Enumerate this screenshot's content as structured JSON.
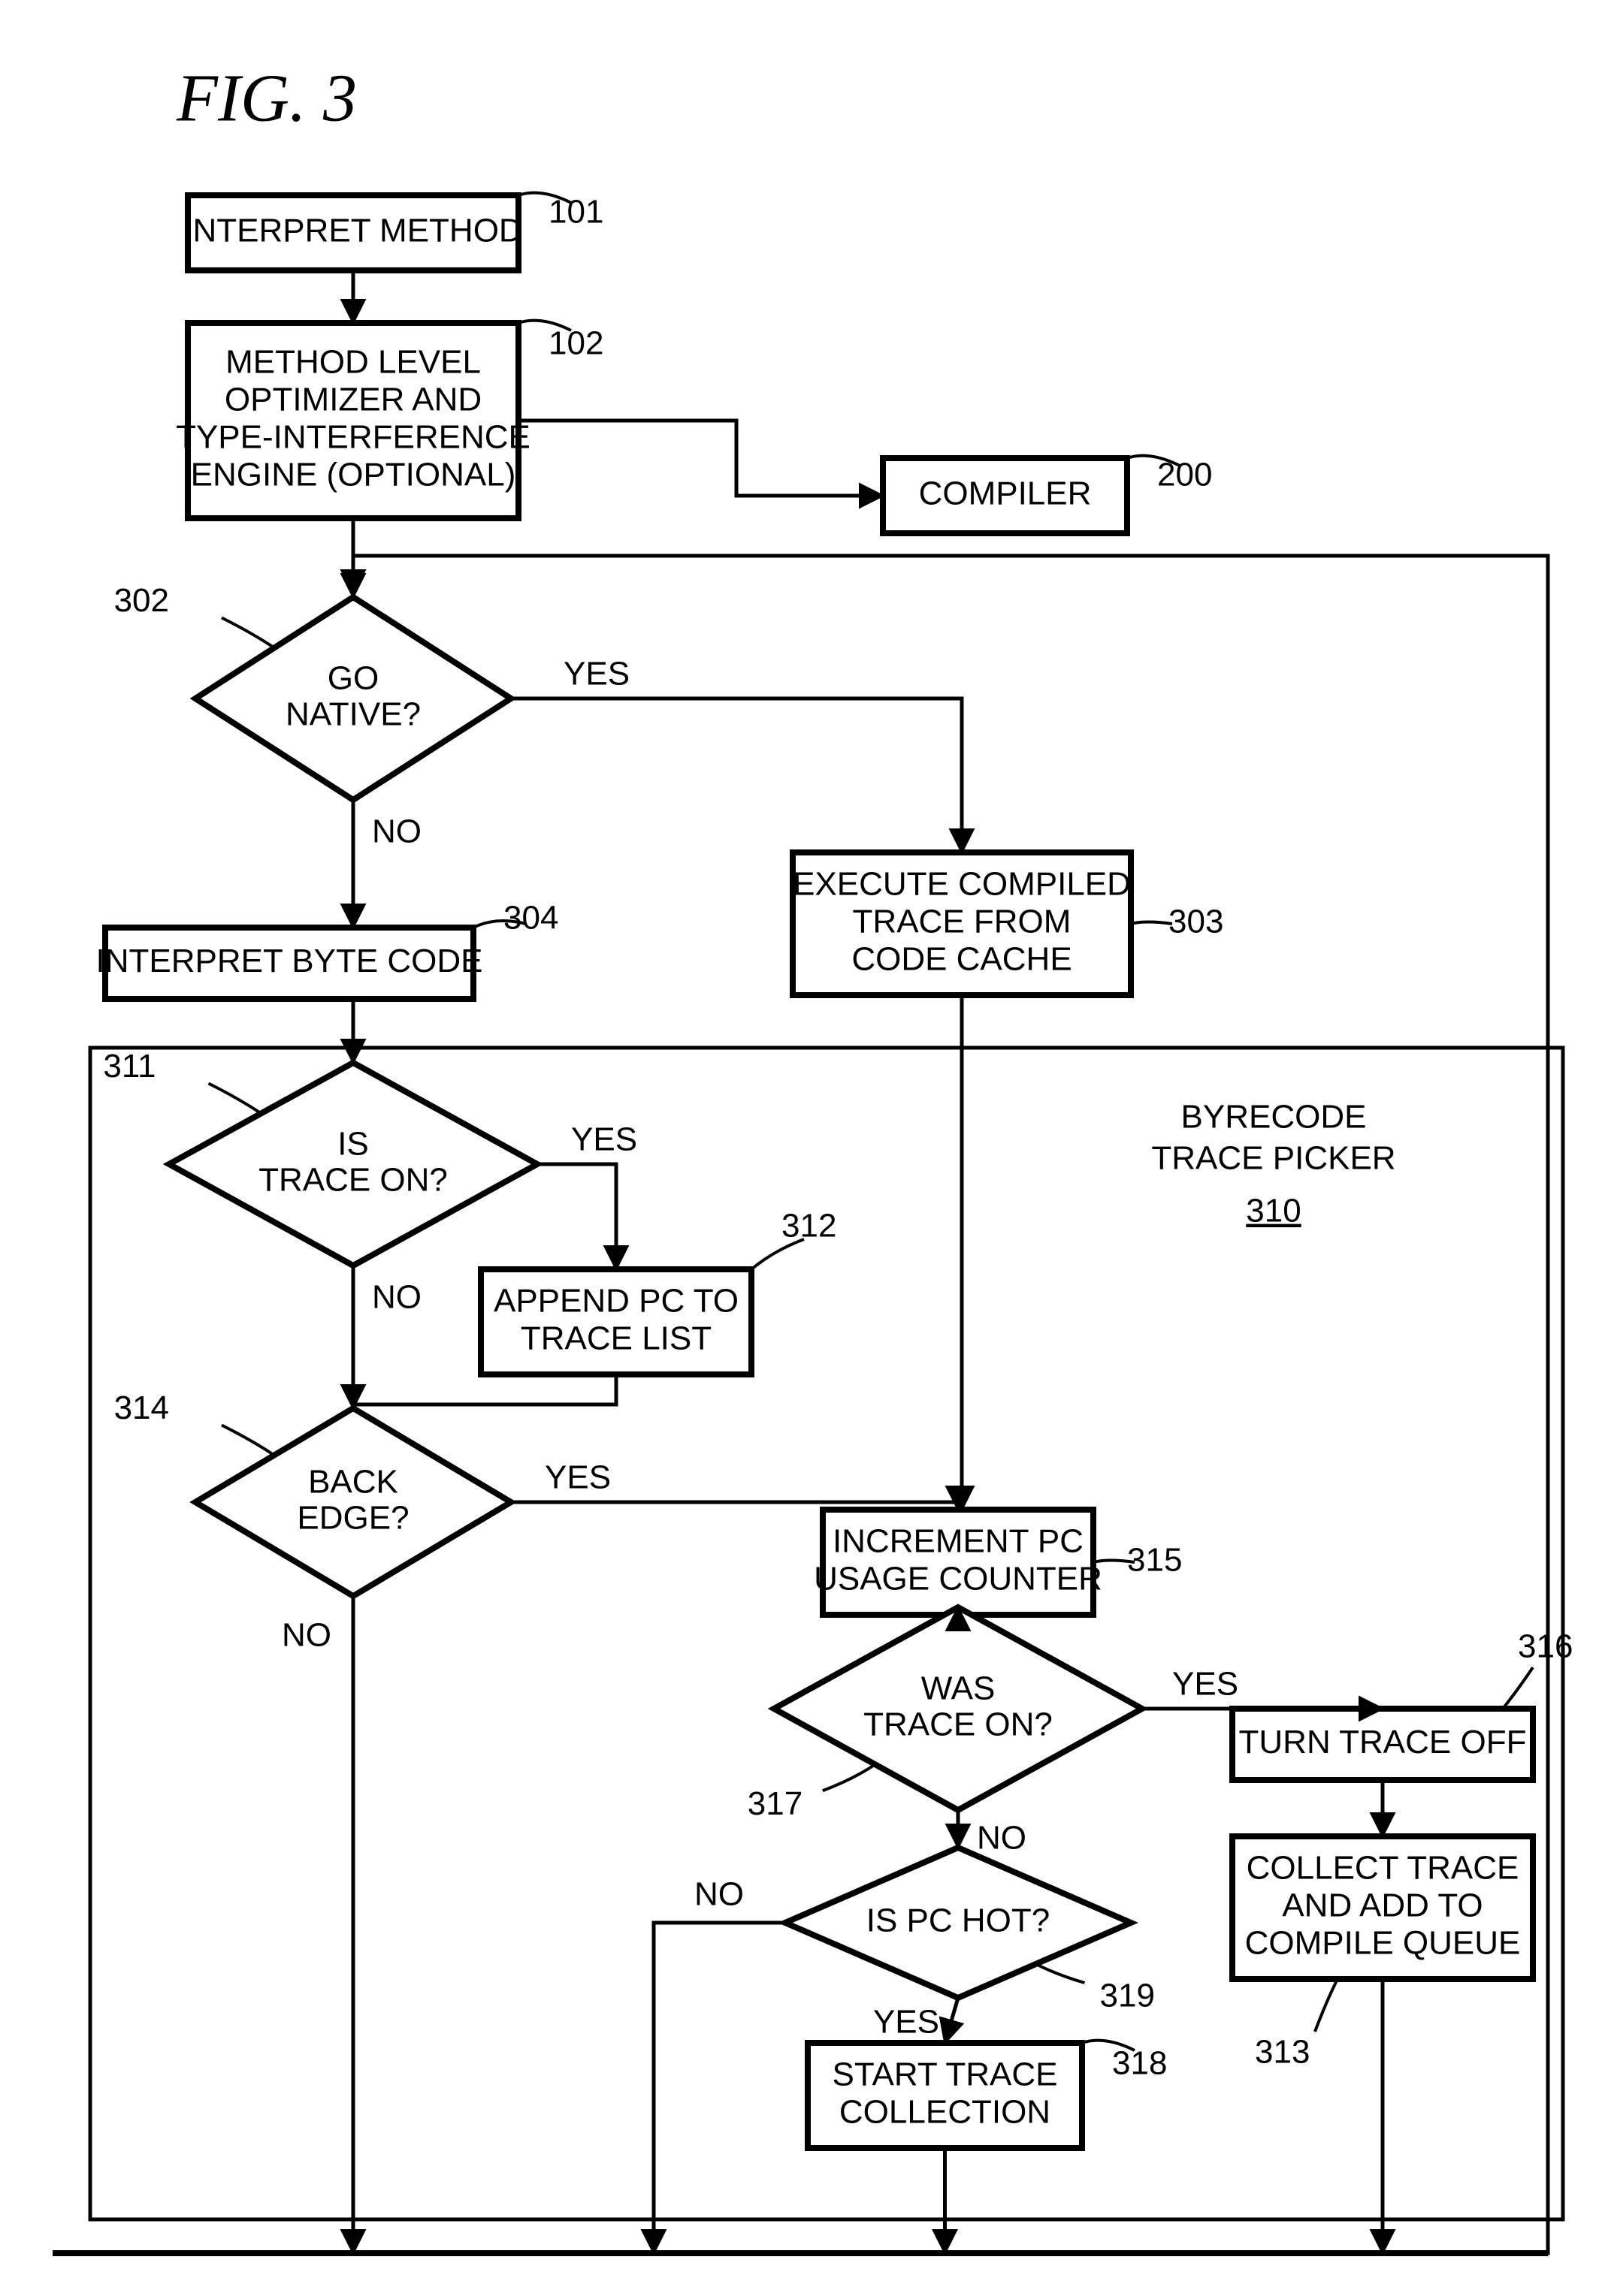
{
  "figure_title": "FIG.  3",
  "stroke_width_thin": 5,
  "stroke_width_thick": 8,
  "font_main": 44,
  "font_title": 90,
  "font_label": 44,
  "labels": {
    "yes": "YES",
    "no": "NO"
  },
  "container": {
    "title_lines": [
      "BYRECODE",
      "TRACE PICKER"
    ],
    "title_ref": "310"
  },
  "nodes": {
    "n101": {
      "type": "box",
      "ref": "101",
      "lines": [
        "INTERPRET METHOD"
      ]
    },
    "n102": {
      "type": "box",
      "ref": "102",
      "lines": [
        "METHOD LEVEL",
        "OPTIMIZER AND",
        "TYPE-INTERFERENCE",
        "ENGINE (OPTIONAL)"
      ]
    },
    "n200": {
      "type": "box",
      "ref": "200",
      "lines": [
        "COMPILER"
      ]
    },
    "n302": {
      "type": "diamond",
      "ref": "302",
      "lines": [
        "GO",
        "NATIVE?"
      ]
    },
    "n303": {
      "type": "box",
      "ref": "303",
      "lines": [
        "EXECUTE COMPILED",
        "TRACE FROM",
        "CODE CACHE"
      ]
    },
    "n304": {
      "type": "box",
      "ref": "304",
      "lines": [
        "INTERPRET BYTE CODE"
      ]
    },
    "n311": {
      "type": "diamond",
      "ref": "311",
      "lines": [
        "IS",
        "TRACE ON?"
      ]
    },
    "n312": {
      "type": "box",
      "ref": "312",
      "lines": [
        "APPEND PC TO",
        "TRACE LIST"
      ]
    },
    "n314": {
      "type": "diamond",
      "ref": "314",
      "lines": [
        "BACK",
        "EDGE?"
      ]
    },
    "n315": {
      "type": "box",
      "ref": "315",
      "lines": [
        "INCREMENT PC",
        "USAGE COUNTER"
      ]
    },
    "n317": {
      "type": "diamond",
      "ref": "317",
      "lines": [
        "WAS",
        "TRACE ON?"
      ]
    },
    "n316": {
      "type": "box",
      "ref": "316",
      "lines": [
        "TURN TRACE OFF"
      ]
    },
    "n319": {
      "type": "diamond",
      "ref": "319",
      "lines": [
        "IS PC HOT?"
      ]
    },
    "n313": {
      "type": "box",
      "ref": "313",
      "lines": [
        "COLLECT TRACE",
        "AND ADD TO",
        "COMPILE QUEUE"
      ]
    },
    "n318": {
      "type": "box",
      "ref": "318",
      "lines": [
        "START TRACE",
        "COLLECTION"
      ]
    }
  }
}
